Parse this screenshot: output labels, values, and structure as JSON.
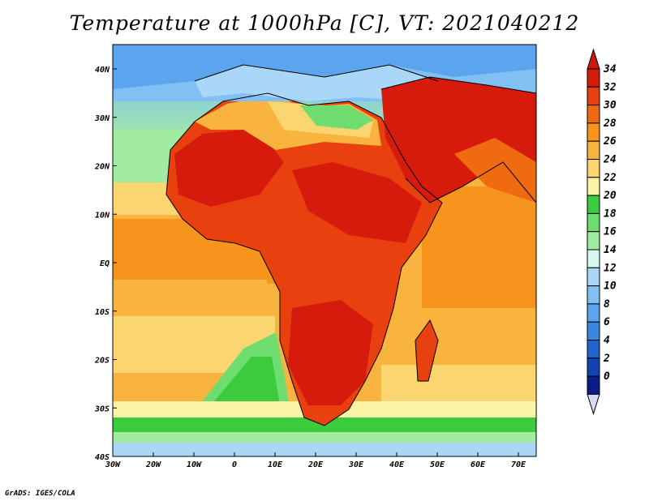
{
  "title": "Temperature at 1000hPa [C], VT: 2021040212",
  "credit": "GrADS: IGES/COLA",
  "map": {
    "lon_ticks": [
      "30W",
      "20W",
      "10W",
      "0",
      "10E",
      "20E",
      "30E",
      "40E",
      "50E",
      "60E",
      "70E"
    ],
    "lat_ticks": [
      "40N",
      "30N",
      "20N",
      "10N",
      "EQ",
      "10S",
      "20S",
      "30S",
      "40S"
    ],
    "lon_range": [
      -30,
      75
    ],
    "lat_range": [
      -40,
      45
    ]
  },
  "colorbar": {
    "labels": [
      "34",
      "32",
      "30",
      "28",
      "26",
      "24",
      "22",
      "20",
      "18",
      "16",
      "14",
      "12",
      "10",
      "8",
      "6",
      "4",
      "2",
      "0"
    ],
    "colors": [
      "#d61a0c",
      "#e8410f",
      "#f06a12",
      "#f6941c",
      "#f8b43e",
      "#fbd670",
      "#fbf3a6",
      "#3ccb3c",
      "#6fdc6f",
      "#a0eca0",
      "#d7f8ee",
      "#aad7f8",
      "#82c0f3",
      "#5aa5ee",
      "#3a86e2",
      "#2064cf",
      "#1143b4",
      "#0a1c86"
    ],
    "over_color": "#cc1a0a",
    "under_color": "#d8d8f8"
  }
}
